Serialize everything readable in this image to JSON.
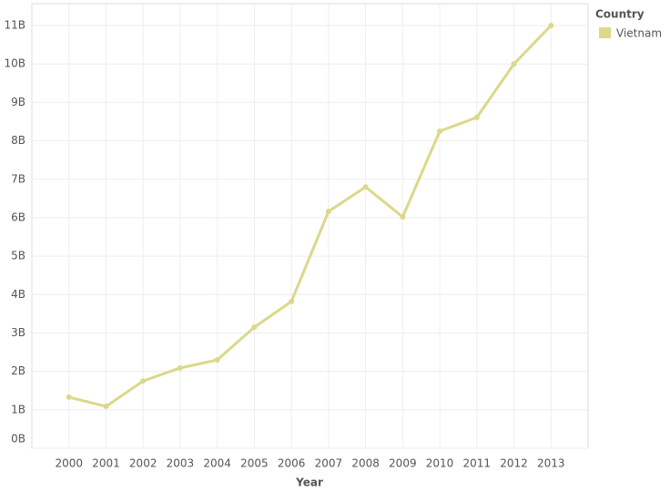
{
  "chart_data": {
    "type": "line",
    "x_label": "Year",
    "x": [
      2000,
      2001,
      2002,
      2003,
      2004,
      2005,
      2006,
      2007,
      2008,
      2009,
      2010,
      2011,
      2012,
      2013
    ],
    "xlim": [
      1999,
      2014
    ],
    "xticks": [
      2000,
      2001,
      2002,
      2003,
      2004,
      2005,
      2006,
      2007,
      2008,
      2009,
      2010,
      2011,
      2012,
      2013
    ],
    "ylim": [
      0,
      11570000000
    ],
    "yticks": [
      {
        "value": 0,
        "label": "0B"
      },
      {
        "value": 1000000000,
        "label": "1B"
      },
      {
        "value": 2000000000,
        "label": "2B"
      },
      {
        "value": 3000000000,
        "label": "3B"
      },
      {
        "value": 4000000000,
        "label": "4B"
      },
      {
        "value": 5000000000,
        "label": "5B"
      },
      {
        "value": 6000000000,
        "label": "6B"
      },
      {
        "value": 7000000000,
        "label": "7B"
      },
      {
        "value": 8000000000,
        "label": "8B"
      },
      {
        "value": 9000000000,
        "label": "9B"
      },
      {
        "value": 10000000000,
        "label": "10B"
      },
      {
        "value": 11000000000,
        "label": "11B"
      }
    ],
    "grid": true,
    "legend_title": "Country",
    "legend_position": "right",
    "series": [
      {
        "name": "Vietnam",
        "color": "#dbd88a",
        "values": [
          1330000000,
          1090000000,
          1750000000,
          2090000000,
          2300000000,
          3150000000,
          3820000000,
          6160000000,
          6800000000,
          6020000000,
          8250000000,
          8610000000,
          10000000000,
          11000000000
        ]
      }
    ]
  }
}
